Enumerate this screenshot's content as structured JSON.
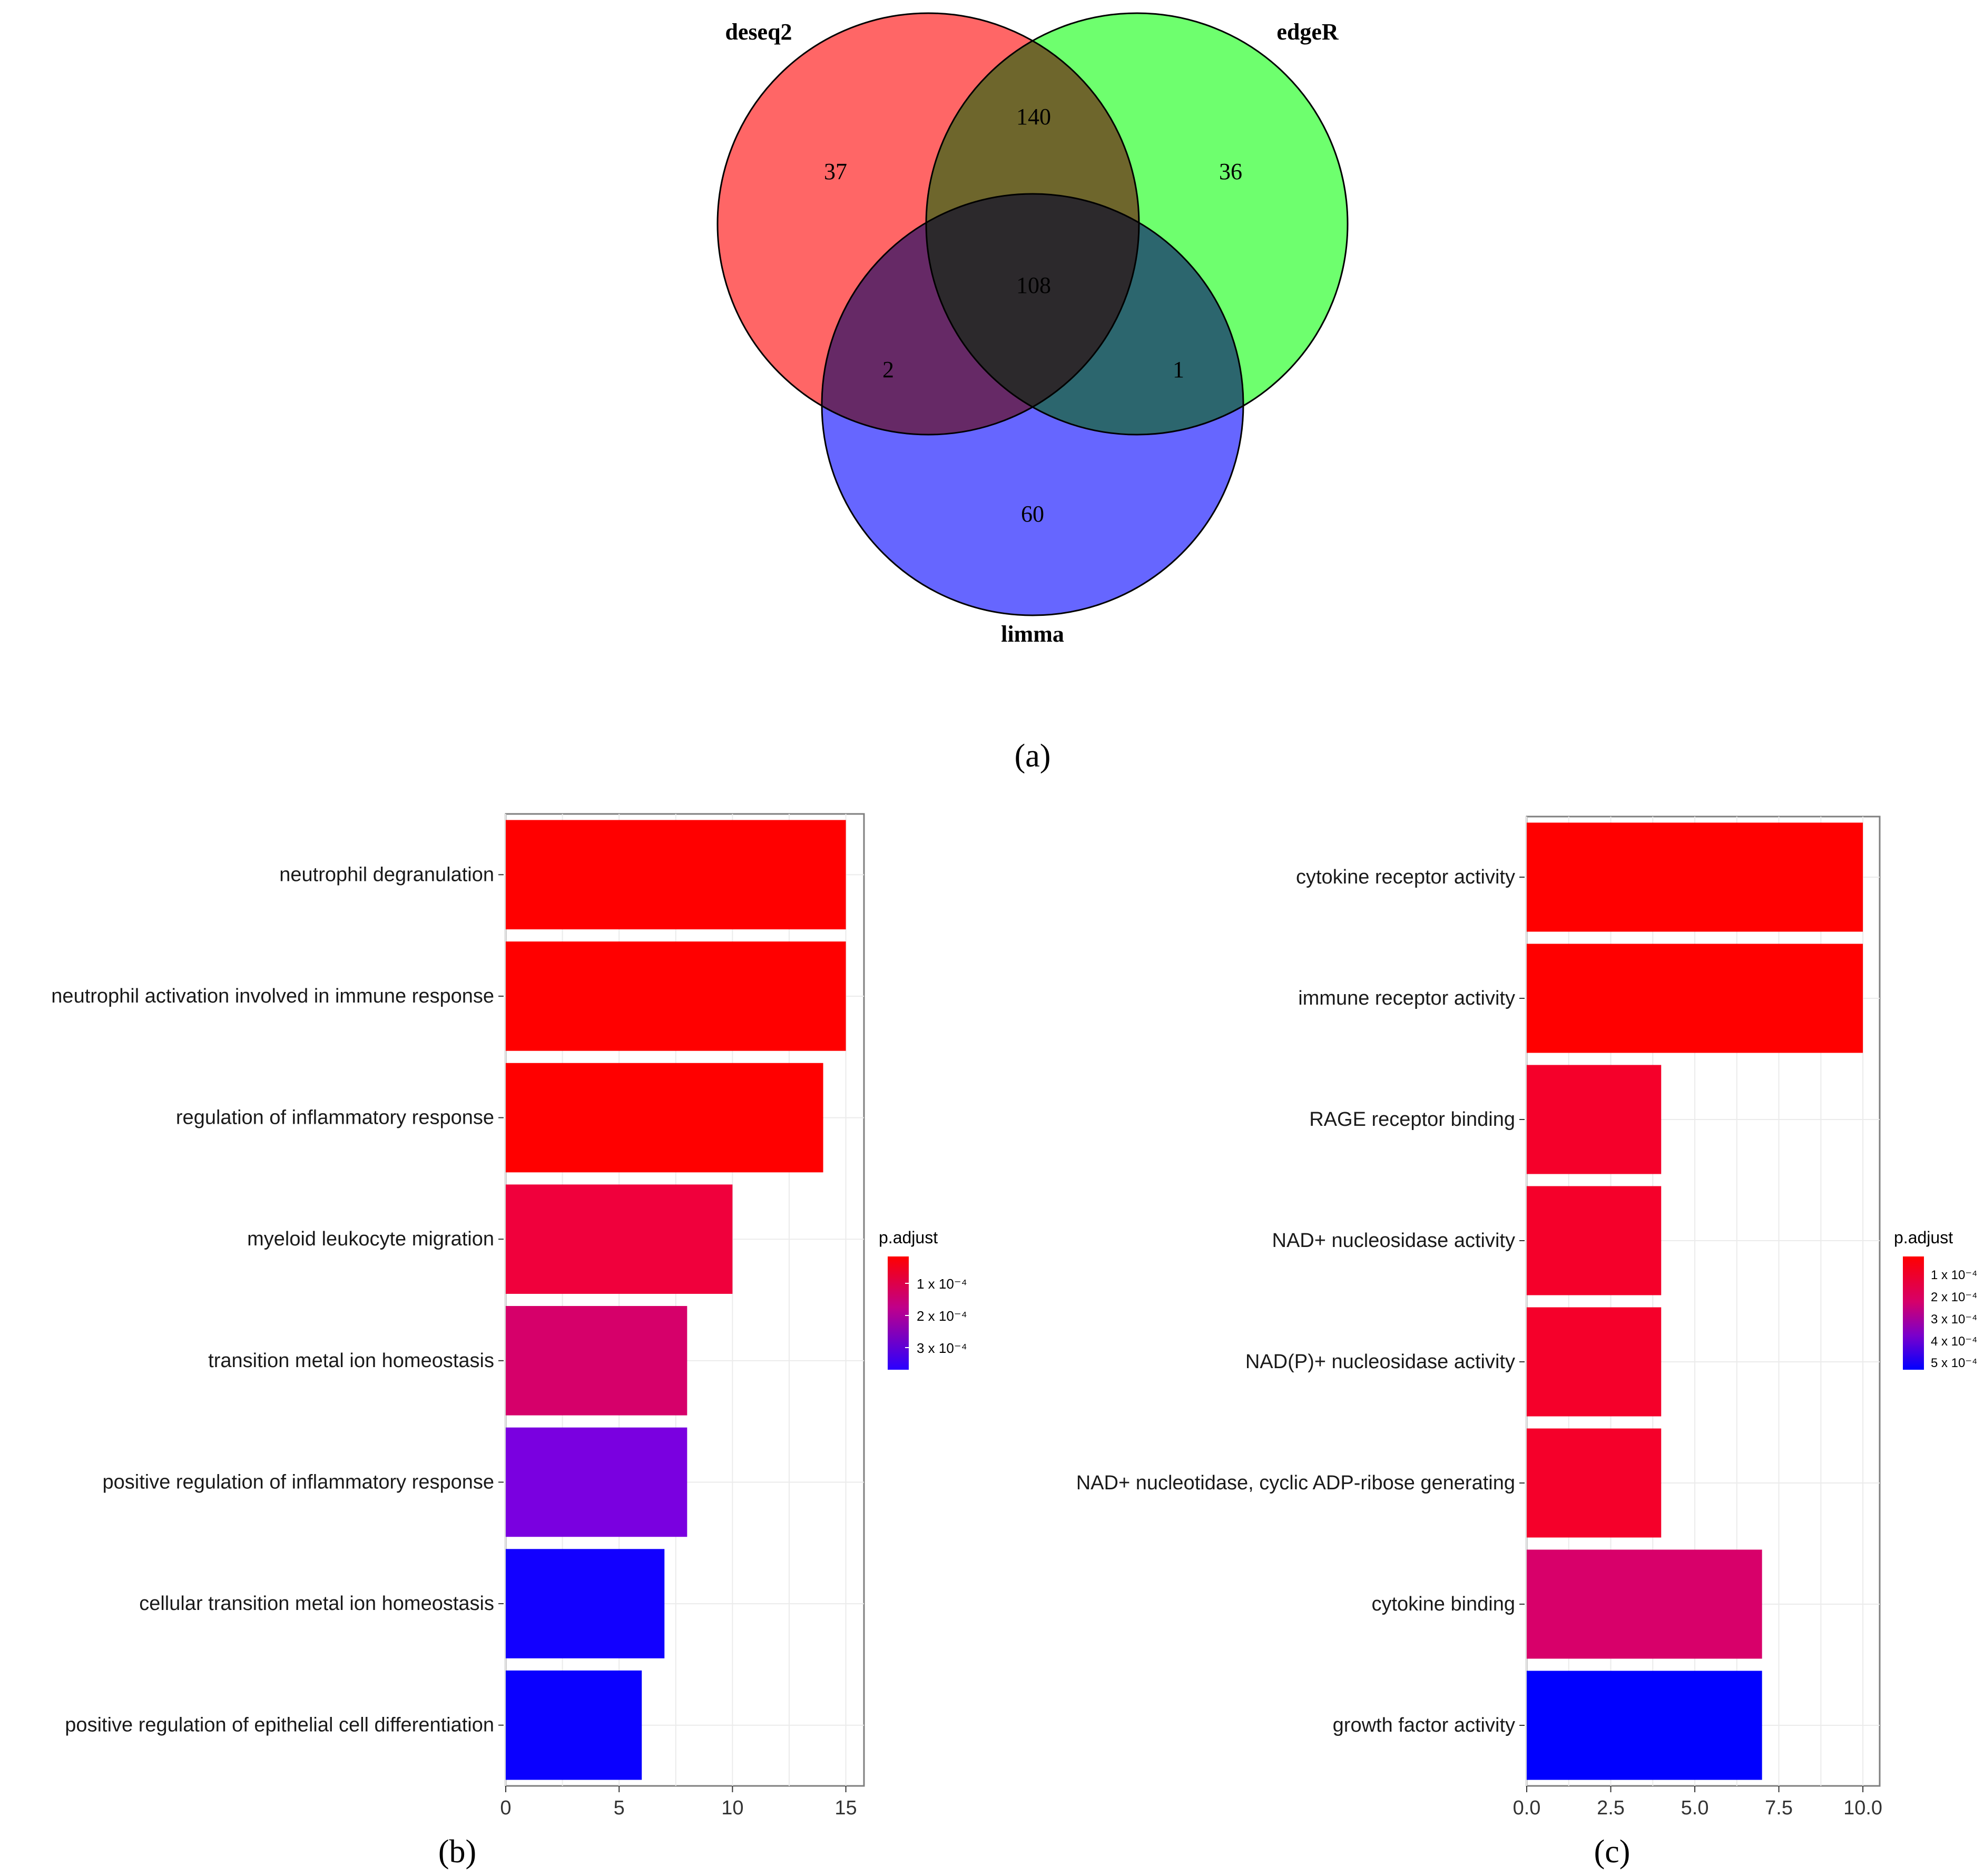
{
  "chart_data": [
    {
      "type": "venn",
      "panel_label": "(a)",
      "sets": [
        "deseq2",
        "edgeR",
        "limma"
      ],
      "colors": {
        "deseq2": "#ff6666",
        "edgeR": "#66ff66",
        "limma": "#6666ff"
      },
      "regions": {
        "deseq2_only": "37",
        "edgeR_only": "36",
        "limma_only": "60",
        "deseq2_edgeR": "140",
        "deseq2_limma": "2",
        "edgeR_limma": "1",
        "all_three": "108"
      }
    },
    {
      "type": "bar",
      "orientation": "horizontal",
      "panel_label": "(b)",
      "categories": [
        "neutrophil degranulation",
        "neutrophil activation involved in immune response",
        "regulation of inflammatory response",
        "myeloid leukocyte migration",
        "transition metal ion homeostasis",
        "positive regulation of inflammatory response",
        "cellular transition metal ion homeostasis",
        "positive regulation of epithelial cell differentiation"
      ],
      "values": [
        15,
        15,
        14,
        10,
        8,
        8,
        7,
        6
      ],
      "colors": [
        "#ff0000",
        "#ff0000",
        "#ff0000",
        "#f0003c",
        "#d6006a",
        "#7a00e0",
        "#1200ff",
        "#0a00ff"
      ],
      "xlim": [
        0,
        15.8
      ],
      "xticks": [
        "0",
        "5",
        "10",
        "15"
      ],
      "xtick_values": [
        0,
        5,
        10,
        15
      ],
      "legend": {
        "title": "p.adjust",
        "labels": [
          "1 x 10⁻⁴",
          "2 x 10⁻⁴",
          "3 x 10⁻⁴"
        ]
      }
    },
    {
      "type": "bar",
      "orientation": "horizontal",
      "panel_label": "(c)",
      "categories": [
        "cytokine receptor activity",
        "immune receptor activity",
        "RAGE receptor binding",
        "NAD+ nucleosidase activity",
        "NAD(P)+ nucleosidase activity",
        "NAD+ nucleotidase, cyclic ADP-ribose generating",
        "cytokine binding",
        "growth factor activity"
      ],
      "values": [
        10,
        10,
        4,
        4,
        4,
        4,
        7,
        7
      ],
      "colors": [
        "#ff0000",
        "#ff0000",
        "#f5002a",
        "#f5002a",
        "#f5002a",
        "#f5002a",
        "#d8006a",
        "#0000ff"
      ],
      "xlim": [
        0,
        10.5
      ],
      "xticks": [
        "0.0",
        "2.5",
        "5.0",
        "7.5",
        "10.0"
      ],
      "xtick_values": [
        0,
        2.5,
        5,
        7.5,
        10
      ],
      "legend": {
        "title": "p.adjust",
        "labels": [
          "1 x 10⁻⁴",
          "2 x 10⁻⁴",
          "3 x 10⁻⁴",
          "4 x 10⁻⁴",
          "5 x 10⁻⁴"
        ]
      }
    }
  ]
}
